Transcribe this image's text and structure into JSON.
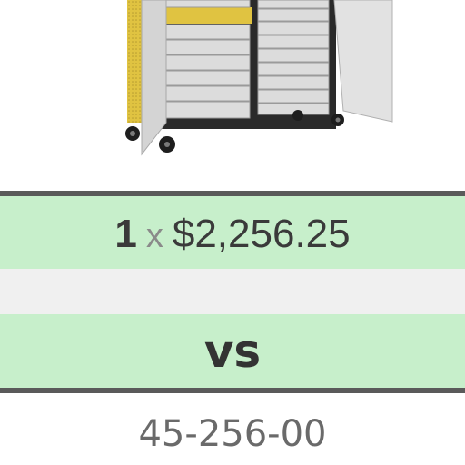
{
  "product": {
    "image_alt": "Mobile storage cabinet with tote trays and open doors"
  },
  "price_row": {
    "quantity": "1",
    "times": "x",
    "price": "$2,256.25"
  },
  "compare": {
    "label": "vs"
  },
  "sku": "45-256-00",
  "colors": {
    "band_green": "#c7efcb",
    "band_gray": "#f0f0f0",
    "rule": "#5a5a5a",
    "cabinet_yellow": "#e0c341",
    "tray_gray": "#dcdcdc"
  }
}
